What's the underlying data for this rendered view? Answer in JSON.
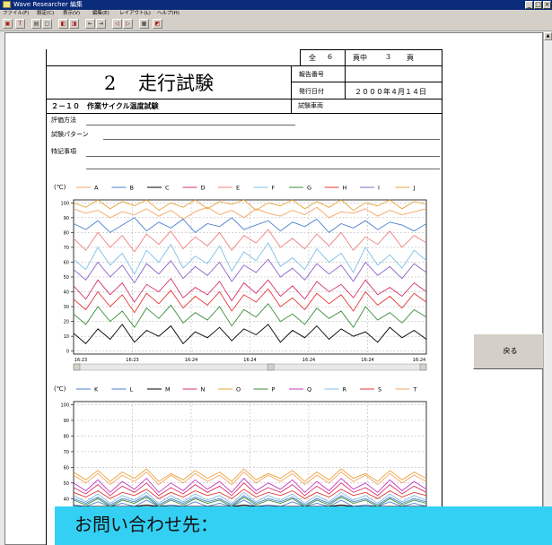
{
  "window": {
    "title": "Wave Researcher 編集"
  },
  "menu": [
    "ファイル(F)",
    "設定(C)",
    "表示(V)",
    "編集(E)",
    "レイアウト(L)",
    "ヘルプ(H)"
  ],
  "toolbar": [
    "save-tool",
    "text-tool",
    "print-tool",
    "preview-tool",
    "copy-tool",
    "paste-tool",
    "align-left-tool",
    "align-right-tool",
    "prev-tool",
    "next-tool",
    "zoom-tool",
    "color-tool"
  ],
  "report": {
    "page_total_label": "全",
    "page_total": "6",
    "page_unit_of": "頁中",
    "page_current": "3",
    "page_unit": "頁",
    "title_number": "2",
    "title": "走行試験",
    "report_no_label": "報告番号",
    "report_no_value": "",
    "issue_date_label": "発行日付",
    "issue_date_value": "２０００年４月１４日",
    "section": "２－１０　作業サイクル温度試験",
    "vehicle_label": "試験車両",
    "eval_method_label": "評価方法",
    "pattern_label": "試験パターン",
    "notes_label": "特記事項"
  },
  "buttons": {
    "back": "戻る"
  },
  "overlay": {
    "text": "お問い合わせ先："
  },
  "chart_data": [
    {
      "type": "line",
      "unit_label": "(℃)",
      "ylim": [
        0,
        100
      ],
      "yticks": [
        "100",
        "90",
        "80",
        "70",
        "60",
        "50",
        "40",
        "30",
        "20",
        "10",
        "0"
      ],
      "xticks": [
        "16:23",
        "16:23",
        "16:24",
        "16:24",
        "16:24",
        "16:24",
        "16:24"
      ],
      "grid": true,
      "legend_position": "top",
      "series": [
        {
          "name": "A",
          "color": "#f4a460",
          "values": [
            96,
            93,
            95,
            90,
            94,
            92,
            96,
            91,
            95,
            89,
            94,
            97,
            92,
            95,
            90,
            96,
            93,
            91,
            95,
            92,
            97,
            90,
            94,
            93,
            96,
            91,
            95,
            92,
            94,
            96
          ]
        },
        {
          "name": "B",
          "color": "#4a7fd0",
          "values": [
            86,
            82,
            88,
            80,
            85,
            90,
            81,
            87,
            83,
            89,
            80,
            86,
            84,
            90,
            82,
            85,
            88,
            81,
            87,
            84,
            89,
            80,
            86,
            83,
            88,
            82,
            87,
            85,
            81,
            86
          ]
        },
        {
          "name": "C",
          "color": "#000000",
          "values": [
            12,
            5,
            15,
            8,
            18,
            6,
            14,
            10,
            17,
            5,
            13,
            9,
            16,
            7,
            15,
            11,
            18,
            6,
            14,
            9,
            17,
            8,
            15,
            10,
            13,
            6,
            16,
            9,
            14,
            8
          ]
        },
        {
          "name": "D",
          "color": "#d6336c",
          "values": [
            44,
            35,
            48,
            38,
            46,
            33,
            45,
            40,
            49,
            36,
            43,
            38,
            47,
            34,
            46,
            39,
            48,
            37,
            44,
            35,
            47,
            40,
            45,
            36,
            48,
            38,
            43,
            37,
            46,
            40
          ]
        },
        {
          "name": "E",
          "color": "#f08080",
          "values": [
            76,
            68,
            80,
            70,
            78,
            67,
            79,
            72,
            81,
            69,
            77,
            71,
            80,
            68,
            78,
            73,
            82,
            70,
            76,
            69,
            79,
            71,
            80,
            68,
            77,
            72,
            81,
            70,
            78,
            73
          ]
        },
        {
          "name": "F",
          "color": "#7fbfe8",
          "values": [
            62,
            55,
            70,
            58,
            66,
            52,
            68,
            60,
            72,
            56,
            64,
            59,
            71,
            54,
            67,
            61,
            73,
            57,
            63,
            55,
            69,
            60,
            66,
            53,
            70,
            58,
            65,
            56,
            68,
            61
          ]
        },
        {
          "name": "G",
          "color": "#3a8f3a",
          "values": [
            25,
            18,
            30,
            20,
            27,
            16,
            29,
            22,
            31,
            19,
            26,
            21,
            30,
            17,
            28,
            23,
            32,
            20,
            25,
            18,
            29,
            22,
            27,
            16,
            30,
            21,
            26,
            19,
            28,
            23
          ]
        },
        {
          "name": "H",
          "color": "#e53935",
          "values": [
            35,
            28,
            40,
            30,
            38,
            26,
            39,
            32,
            41,
            29,
            37,
            31,
            40,
            27,
            38,
            33,
            42,
            30,
            36,
            28,
            39,
            32,
            38,
            27,
            40,
            31,
            37,
            29,
            39,
            33
          ]
        },
        {
          "name": "I",
          "color": "#8a63c8",
          "values": [
            55,
            48,
            60,
            50,
            58,
            46,
            59,
            52,
            61,
            49,
            57,
            51,
            60,
            47,
            58,
            53,
            62,
            50,
            56,
            48,
            59,
            52,
            58,
            47,
            60,
            51,
            57,
            49,
            59,
            53
          ]
        },
        {
          "name": "J",
          "color": "#e9a33c",
          "values": [
            100,
            97,
            102,
            96,
            101,
            98,
            103,
            95,
            100,
            97,
            102,
            96,
            101,
            99,
            103,
            95,
            100,
            98,
            102,
            96,
            101,
            97,
            103,
            95,
            100,
            98,
            102,
            96,
            101,
            99
          ]
        }
      ]
    },
    {
      "type": "line",
      "unit_label": "(℃)",
      "ylim": [
        0,
        100
      ],
      "yticks": [
        "100",
        "90",
        "80",
        "70",
        "60",
        "50",
        "40"
      ],
      "grid": true,
      "legend_position": "top",
      "series": [
        {
          "name": "K",
          "color": "#4a7fd0",
          "values": [
            36,
            33,
            38,
            32,
            37,
            34,
            39,
            33,
            36,
            32,
            38,
            34,
            37,
            33,
            39,
            32,
            36,
            34,
            38,
            33,
            37,
            32,
            39,
            34,
            36,
            33,
            38,
            32,
            37,
            34
          ]
        },
        {
          "name": "L",
          "color": "#4a7fd0",
          "values": [
            40,
            37,
            41,
            36,
            40,
            38,
            42,
            36,
            40,
            37,
            41,
            38,
            40,
            36,
            42,
            37,
            40,
            38,
            41,
            36,
            40,
            37,
            42,
            38,
            40,
            36,
            41,
            37,
            40,
            38
          ]
        },
        {
          "name": "M",
          "color": "#000000",
          "values": [
            34,
            31,
            35,
            30,
            34,
            32,
            36,
            30,
            34,
            31,
            35,
            32,
            34,
            30,
            36,
            31,
            34,
            32,
            35,
            30,
            34,
            31,
            36,
            32,
            34,
            30,
            35,
            31,
            34,
            32
          ]
        },
        {
          "name": "N",
          "color": "#d6336c",
          "values": [
            47,
            43,
            49,
            42,
            48,
            44,
            50,
            42,
            47,
            43,
            49,
            44,
            48,
            42,
            50,
            43,
            47,
            44,
            49,
            42,
            48,
            43,
            50,
            44,
            47,
            42,
            49,
            43,
            48,
            44
          ]
        },
        {
          "name": "O",
          "color": "#e9a33c",
          "values": [
            57,
            52,
            58,
            51,
            57,
            53,
            59,
            51,
            56,
            52,
            58,
            53,
            57,
            51,
            59,
            52,
            56,
            53,
            58,
            51,
            57,
            52,
            59,
            53,
            56,
            51,
            58,
            52,
            57,
            53
          ]
        },
        {
          "name": "P",
          "color": "#3a8f3a",
          "values": [
            39,
            36,
            40,
            35,
            39,
            37,
            41,
            35,
            39,
            36,
            40,
            37,
            39,
            35,
            41,
            36,
            39,
            37,
            40,
            35,
            39,
            36,
            41,
            37,
            39,
            35,
            40,
            36,
            39,
            37
          ]
        },
        {
          "name": "Q",
          "color": "#c43ac4",
          "values": [
            50,
            45,
            52,
            44,
            51,
            46,
            53,
            44,
            50,
            45,
            52,
            46,
            51,
            44,
            53,
            45,
            50,
            46,
            52,
            44,
            51,
            45,
            53,
            46,
            50,
            44,
            52,
            45,
            51,
            46
          ]
        },
        {
          "name": "R",
          "color": "#7fbfe8",
          "values": [
            42,
            38,
            43,
            37,
            42,
            39,
            44,
            37,
            42,
            38,
            43,
            39,
            42,
            37,
            44,
            38,
            42,
            39,
            43,
            37,
            42,
            38,
            44,
            39,
            42,
            37,
            43,
            38,
            42,
            39
          ]
        },
        {
          "name": "S",
          "color": "#e53935",
          "values": [
            44,
            41,
            45,
            40,
            44,
            42,
            46,
            40,
            44,
            41,
            45,
            42,
            44,
            40,
            46,
            41,
            44,
            42,
            45,
            40,
            44,
            41,
            46,
            42,
            44,
            40,
            45,
            41,
            44,
            42
          ]
        },
        {
          "name": "T",
          "color": "#f4a460",
          "values": [
            55,
            50,
            56,
            49,
            55,
            51,
            57,
            49,
            55,
            50,
            56,
            51,
            55,
            49,
            57,
            50,
            55,
            51,
            56,
            49,
            55,
            50,
            57,
            51,
            55,
            49,
            56,
            50,
            55,
            51
          ]
        }
      ]
    }
  ]
}
